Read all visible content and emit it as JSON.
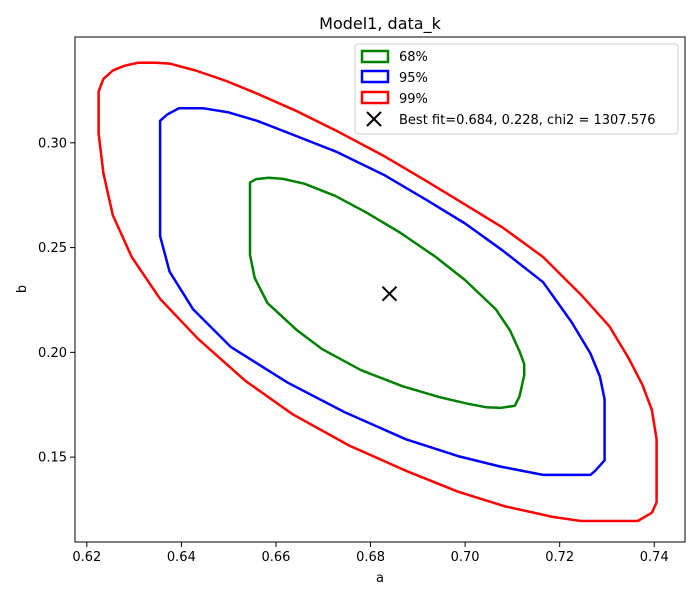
{
  "chart_data": {
    "type": "line",
    "title": "Model1, data_k",
    "xlabel": "a",
    "ylabel": "b",
    "xlim": [
      0.6175,
      0.7465
    ],
    "ylim": [
      0.1095,
      0.3505
    ],
    "x_ticks": [
      "0.62",
      "0.64",
      "0.66",
      "0.68",
      "0.70",
      "0.72",
      "0.74"
    ],
    "y_ticks": [
      "0.15",
      "0.20",
      "0.25",
      "0.30"
    ],
    "grid": false,
    "legend_placement": "top-right",
    "series": [
      {
        "name": "68%",
        "color": "#008000",
        "points": [
          [
            0.6545,
            0.281
          ],
          [
            0.6558,
            0.2827
          ],
          [
            0.6585,
            0.2833
          ],
          [
            0.6615,
            0.2828
          ],
          [
            0.666,
            0.2805
          ],
          [
            0.6725,
            0.2747
          ],
          [
            0.679,
            0.2669
          ],
          [
            0.6862,
            0.2572
          ],
          [
            0.6938,
            0.2455
          ],
          [
            0.7,
            0.2345
          ],
          [
            0.7065,
            0.2205
          ],
          [
            0.7095,
            0.2105
          ],
          [
            0.7115,
            0.2005
          ],
          [
            0.7125,
            0.1945
          ],
          [
            0.7125,
            0.189
          ],
          [
            0.7115,
            0.179
          ],
          [
            0.7105,
            0.1745
          ],
          [
            0.7075,
            0.1735
          ],
          [
            0.7045,
            0.1738
          ],
          [
            0.7005,
            0.1755
          ],
          [
            0.6948,
            0.1785
          ],
          [
            0.6868,
            0.1838
          ],
          [
            0.678,
            0.1915
          ],
          [
            0.6698,
            0.2015
          ],
          [
            0.6645,
            0.2105
          ],
          [
            0.6582,
            0.2235
          ],
          [
            0.6555,
            0.2355
          ],
          [
            0.6545,
            0.2465
          ],
          [
            0.6545,
            0.2573
          ],
          [
            0.6545,
            0.2677
          ],
          [
            0.6545,
            0.281
          ]
        ]
      },
      {
        "name": "95%",
        "color": "#0000ff",
        "points": [
          [
            0.6355,
            0.3105
          ],
          [
            0.637,
            0.3135
          ],
          [
            0.6395,
            0.3165
          ],
          [
            0.6445,
            0.3165
          ],
          [
            0.65,
            0.3145
          ],
          [
            0.656,
            0.3105
          ],
          [
            0.664,
            0.3035
          ],
          [
            0.673,
            0.2955
          ],
          [
            0.683,
            0.2845
          ],
          [
            0.692,
            0.2725
          ],
          [
            0.7,
            0.2615
          ],
          [
            0.708,
            0.2485
          ],
          [
            0.7165,
            0.2335
          ],
          [
            0.7225,
            0.2145
          ],
          [
            0.7265,
            0.1995
          ],
          [
            0.7285,
            0.1885
          ],
          [
            0.7295,
            0.1775
          ],
          [
            0.7295,
            0.1615
          ],
          [
            0.7295,
            0.1485
          ],
          [
            0.7275,
            0.1435
          ],
          [
            0.7265,
            0.1415
          ],
          [
            0.7165,
            0.1415
          ],
          [
            0.7075,
            0.1455
          ],
          [
            0.6985,
            0.1505
          ],
          [
            0.6875,
            0.1585
          ],
          [
            0.6745,
            0.1715
          ],
          [
            0.6625,
            0.1855
          ],
          [
            0.6505,
            0.2025
          ],
          [
            0.6425,
            0.2205
          ],
          [
            0.6375,
            0.2385
          ],
          [
            0.6355,
            0.2555
          ],
          [
            0.6355,
            0.2805
          ],
          [
            0.6355,
            0.2995
          ],
          [
            0.6355,
            0.3105
          ]
        ]
      },
      {
        "name": "99%",
        "color": "#ff0000",
        "points": [
          [
            0.6225,
            0.3245
          ],
          [
            0.6235,
            0.3305
          ],
          [
            0.6255,
            0.3345
          ],
          [
            0.628,
            0.3368
          ],
          [
            0.6308,
            0.3382
          ],
          [
            0.6342,
            0.3383
          ],
          [
            0.6375,
            0.3378
          ],
          [
            0.643,
            0.3345
          ],
          [
            0.6495,
            0.3295
          ],
          [
            0.656,
            0.3235
          ],
          [
            0.664,
            0.3155
          ],
          [
            0.673,
            0.3055
          ],
          [
            0.683,
            0.2935
          ],
          [
            0.692,
            0.2815
          ],
          [
            0.7,
            0.2705
          ],
          [
            0.708,
            0.2595
          ],
          [
            0.7165,
            0.2455
          ],
          [
            0.7245,
            0.2275
          ],
          [
            0.7305,
            0.2125
          ],
          [
            0.7345,
            0.1975
          ],
          [
            0.7375,
            0.1845
          ],
          [
            0.7395,
            0.1725
          ],
          [
            0.7405,
            0.1585
          ],
          [
            0.7405,
            0.1425
          ],
          [
            0.7405,
            0.1285
          ],
          [
            0.7395,
            0.1235
          ],
          [
            0.7365,
            0.1195
          ],
          [
            0.7245,
            0.1195
          ],
          [
            0.7185,
            0.1215
          ],
          [
            0.7085,
            0.1265
          ],
          [
            0.6985,
            0.1335
          ],
          [
            0.6875,
            0.1435
          ],
          [
            0.6755,
            0.1555
          ],
          [
            0.6635,
            0.1705
          ],
          [
            0.6535,
            0.1865
          ],
          [
            0.6435,
            0.2065
          ],
          [
            0.6355,
            0.2255
          ],
          [
            0.6295,
            0.2455
          ],
          [
            0.6255,
            0.2655
          ],
          [
            0.6235,
            0.2855
          ],
          [
            0.6225,
            0.3045
          ],
          [
            0.6225,
            0.3245
          ]
        ]
      }
    ],
    "best_fit": {
      "label": "Best fit=0.684, 0.228, chi2 = 1307.576",
      "a": 0.684,
      "b": 0.228,
      "marker": "x",
      "color": "#000000"
    }
  }
}
